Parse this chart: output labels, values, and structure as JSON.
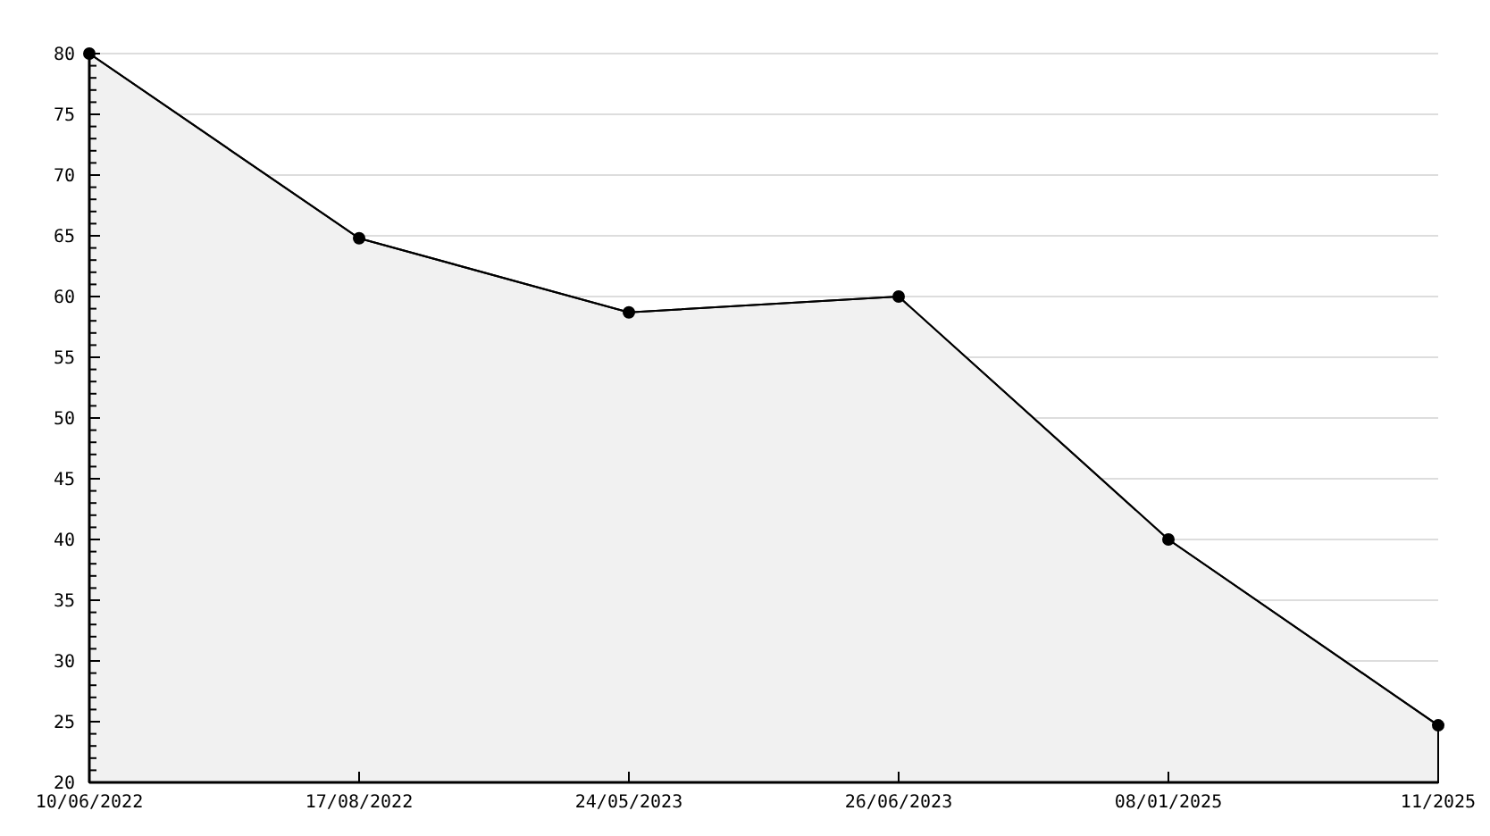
{
  "chart_data": {
    "type": "area",
    "categories": [
      "10/06/2022",
      "17/08/2022",
      "24/05/2023",
      "26/06/2023",
      "08/01/2025",
      "11/2025"
    ],
    "values": [
      80,
      64.8,
      58.7,
      60,
      40,
      24.7
    ],
    "color": "#f1f1f1",
    "ylim": [
      20,
      80
    ],
    "yticks": [
      20,
      {
        "value": 21,
        "label": null
      },
      {
        "value": 22,
        "label": null
      },
      {
        "value": 23,
        "label": null
      },
      {
        "value": 24,
        "label": null
      },
      25,
      {
        "value": 26,
        "label": null
      },
      {
        "value": 27,
        "label": null
      },
      {
        "value": 28,
        "label": null
      },
      {
        "value": 29,
        "label": null
      },
      30,
      {
        "value": 31,
        "label": null
      },
      {
        "value": 32,
        "label": null
      },
      {
        "value": 33,
        "label": null
      },
      {
        "value": 34,
        "label": null
      },
      35,
      {
        "value": 36,
        "label": null
      },
      {
        "value": 37,
        "label": null
      },
      {
        "value": 38,
        "label": null
      },
      {
        "value": 39,
        "label": null
      },
      40,
      {
        "value": 41,
        "label": null
      },
      {
        "value": 42,
        "label": null
      },
      {
        "value": 43,
        "label": null
      },
      {
        "value": 44,
        "label": null
      },
      45,
      {
        "value": 46,
        "label": null
      },
      {
        "value": 47,
        "label": null
      },
      {
        "value": 48,
        "label": null
      },
      {
        "value": 49,
        "label": null
      },
      50,
      {
        "value": 51,
        "label": null
      },
      {
        "value": 52,
        "label": null
      },
      {
        "value": 53,
        "label": null
      },
      {
        "value": 54,
        "label": null
      },
      55,
      {
        "value": 56,
        "label": null
      },
      {
        "value": 57,
        "label": null
      },
      {
        "value": 58,
        "label": null
      },
      {
        "value": 59,
        "label": null
      },
      60,
      {
        "value": 61,
        "label": null
      },
      {
        "value": 62,
        "label": null
      },
      {
        "value": 63,
        "label": null
      },
      {
        "value": 64,
        "label": null
      },
      65,
      {
        "value": 66,
        "label": null
      },
      {
        "value": 67,
        "label": null
      },
      {
        "value": 68,
        "label": null
      },
      {
        "value": 69,
        "label": null
      },
      70,
      {
        "value": 71,
        "label": null
      },
      {
        "value": 72,
        "label": null
      },
      {
        "value": 73,
        "label": null
      },
      {
        "value": 74,
        "label": null
      },
      75,
      {
        "value": 76,
        "label": null
      },
      {
        "value": 77,
        "label": null
      },
      {
        "value": 78,
        "label": null
      },
      {
        "value": 79,
        "label": null
      },
      80
    ],
    "grid": "y",
    "marker": "circle"
  }
}
